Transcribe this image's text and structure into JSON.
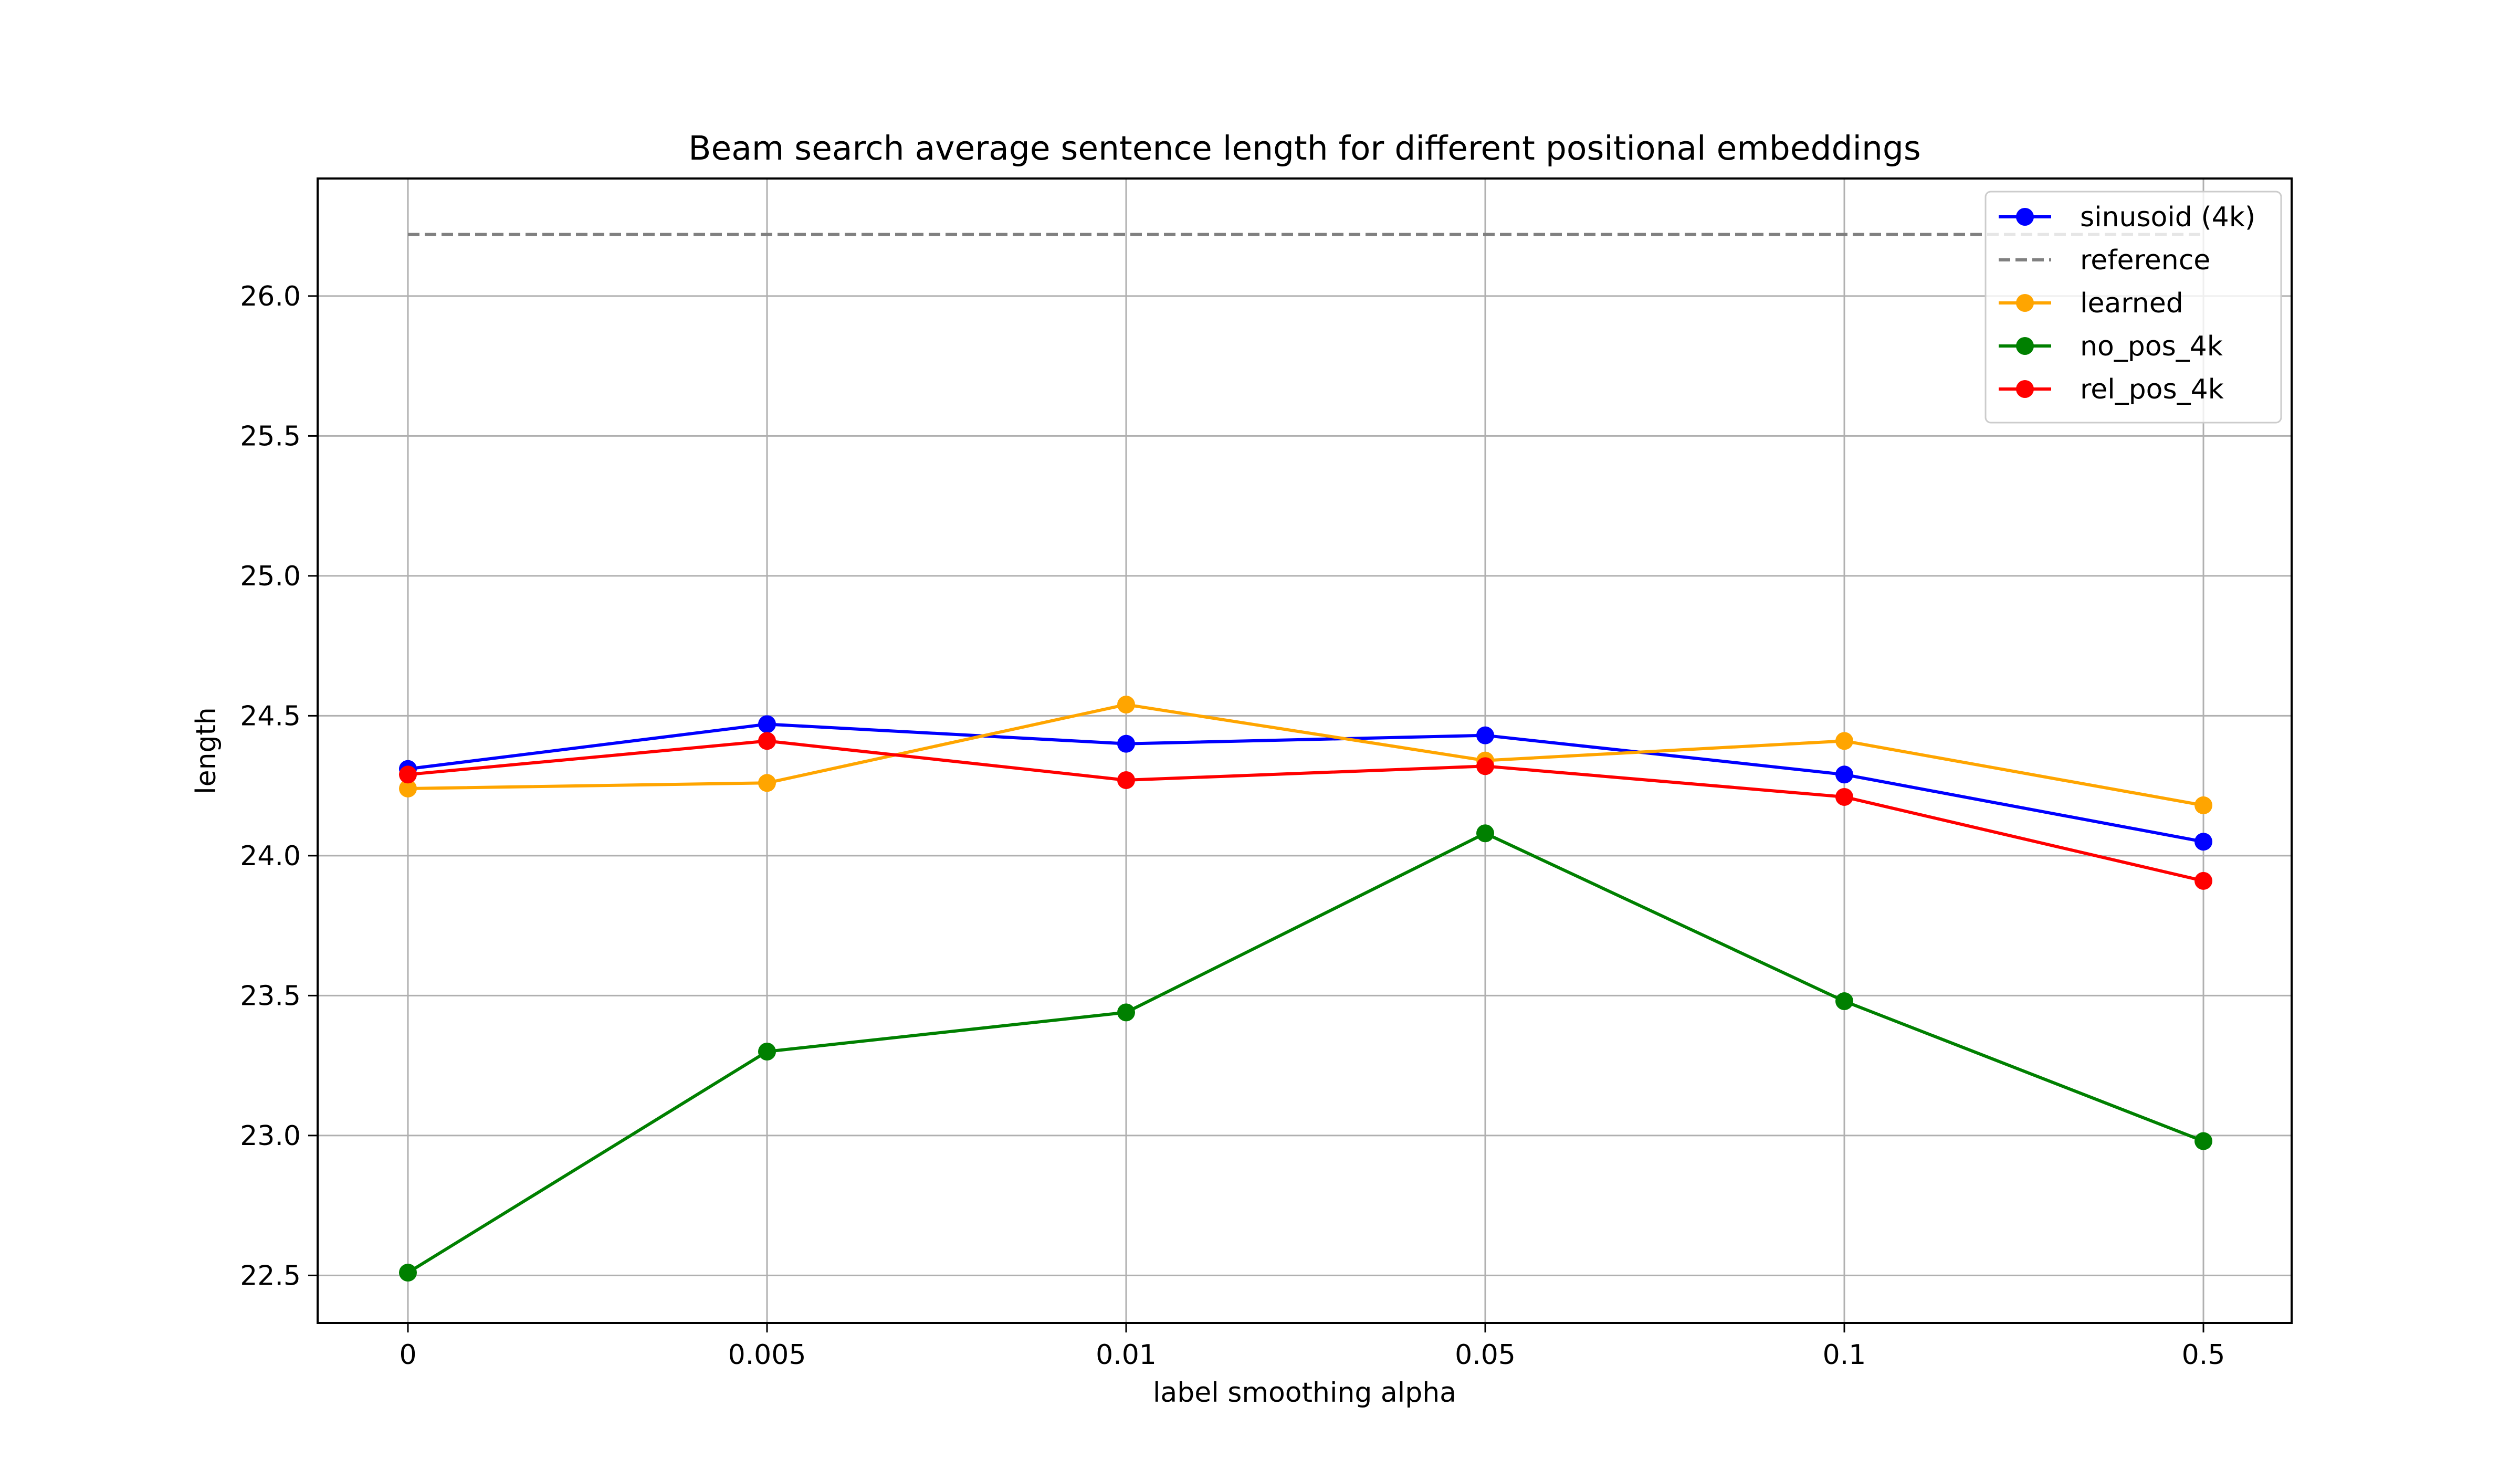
{
  "chart_data": {
    "type": "line",
    "title": "Beam search average sentence length for different positional embeddings",
    "xlabel": "label smoothing alpha",
    "ylabel": "length",
    "categories": [
      "0",
      "0.005",
      "0.01",
      "0.05",
      "0.1",
      "0.5"
    ],
    "ylim": [
      22.33,
      26.42
    ],
    "yticks": [
      22.5,
      23.0,
      23.5,
      24.0,
      24.5,
      25.0,
      25.5,
      26.0
    ],
    "ytick_labels": [
      "22.5",
      "23.0",
      "23.5",
      "24.0",
      "24.5",
      "25.0",
      "25.5",
      "26.0"
    ],
    "grid": true,
    "legend_position": "top-right",
    "series": [
      {
        "name": "sinusoid (4k)",
        "color": "#0000ff",
        "style": "solid",
        "marker": "circle",
        "values": [
          24.31,
          24.47,
          24.4,
          24.43,
          24.29,
          24.05
        ]
      },
      {
        "name": "reference",
        "color": "#808080",
        "style": "dashed",
        "marker": "none",
        "values": [
          26.22,
          26.22,
          26.22,
          26.22,
          26.22,
          26.22
        ]
      },
      {
        "name": "learned",
        "color": "#ffa500",
        "style": "solid",
        "marker": "circle",
        "values": [
          24.24,
          24.26,
          24.54,
          24.34,
          24.41,
          24.18
        ]
      },
      {
        "name": "no_pos_4k",
        "color": "#008000",
        "style": "solid",
        "marker": "circle",
        "values": [
          22.51,
          23.3,
          23.44,
          24.08,
          23.48,
          22.98
        ]
      },
      {
        "name": "rel_pos_4k",
        "color": "#ff0000",
        "style": "solid",
        "marker": "circle",
        "values": [
          24.29,
          24.41,
          24.27,
          24.32,
          24.21,
          23.91
        ]
      }
    ]
  }
}
